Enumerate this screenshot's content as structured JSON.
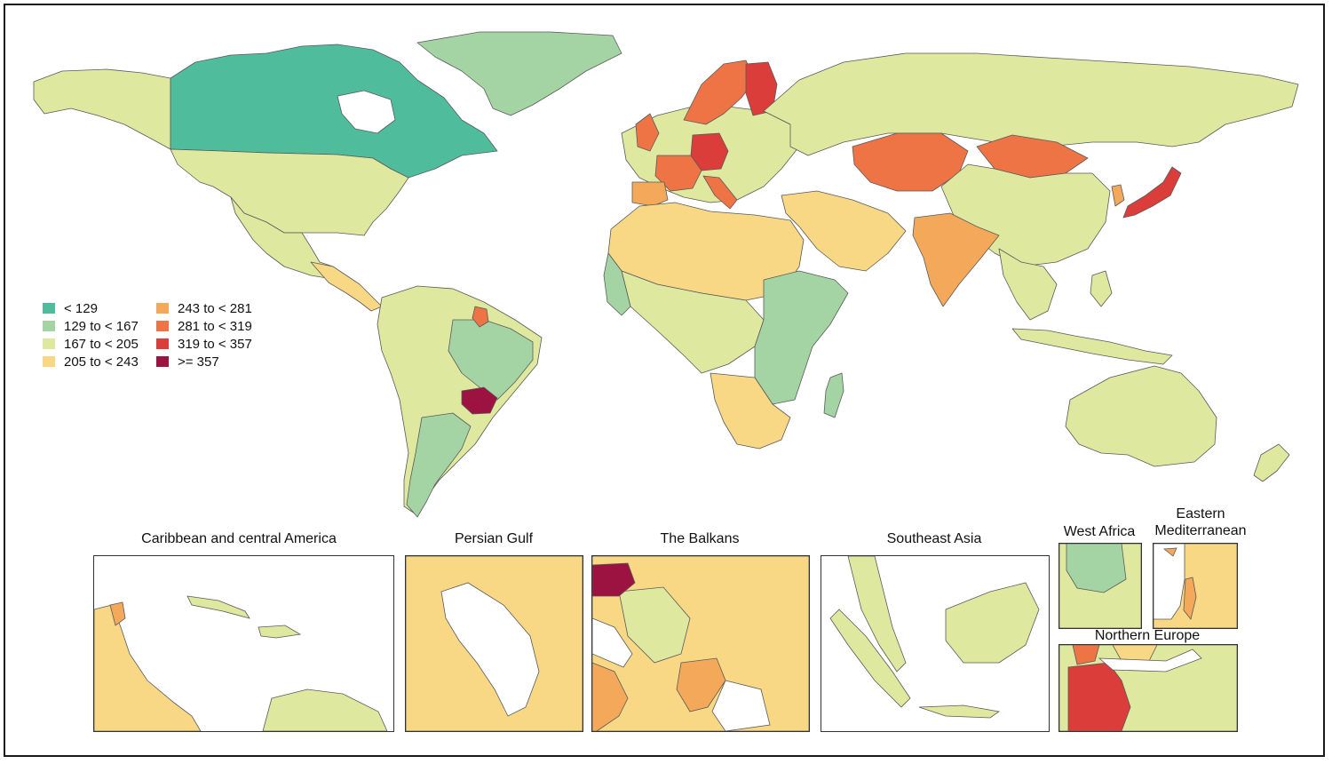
{
  "legend": {
    "items": [
      {
        "label": "< 129",
        "color": "#4fbd9c"
      },
      {
        "label": "129 to < 167",
        "color": "#a5d4a4"
      },
      {
        "label": "167 to < 205",
        "color": "#dfe89f"
      },
      {
        "label": "205 to < 243",
        "color": "#f8d785"
      },
      {
        "label": "243 to < 281",
        "color": "#f4a95a"
      },
      {
        "label": "281 to < 319",
        "color": "#ee7446"
      },
      {
        "label": "319 to < 357",
        "color": "#da3d3a"
      },
      {
        "label": ">= 357",
        "color": "#9c1240"
      }
    ]
  },
  "insets": {
    "caribbean": {
      "title": "Caribbean and central America"
    },
    "persian_gulf": {
      "title": "Persian Gulf"
    },
    "balkans": {
      "title": "The Balkans"
    },
    "southeast_asia": {
      "title": "Southeast Asia"
    },
    "west_africa": {
      "title": "West Africa"
    },
    "eastern_med": {
      "title": "Eastern Mediterranean"
    },
    "northern_europe": {
      "title": "Northern Europe"
    }
  },
  "regions": {
    "canada": "#4fbd9c",
    "alaska": "#dfe89f",
    "greenland": "#a5d4a4",
    "usa": "#dfe89f",
    "mexico": "#dfe89f",
    "central_america": "#f8d785",
    "south_america": "#dfe89f",
    "argentina": "#a5d4a4",
    "brazil_east": "#a5d4a4",
    "brazil_center": "#9c1240",
    "brazil_north": "#ee7446",
    "europe": "#dfe89f",
    "scandinavia": "#ee7446",
    "finland": "#da3d3a",
    "germany": "#da3d3a",
    "france": "#ee7446",
    "spain": "#f4a95a",
    "italy": "#ee7446",
    "russia": "#dfe89f",
    "kazakhstan": "#ee7446",
    "mongolia": "#ee7446",
    "china": "#dfe89f",
    "japan": "#da3d3a",
    "korea": "#f4a95a",
    "india": "#f4a95a",
    "middle_east": "#f8d785",
    "north_africa": "#f8d785",
    "sahel": "#dfe89f",
    "west_africa": "#a5d4a4",
    "east_africa": "#a5d4a4",
    "southern_africa": "#f8d785",
    "madagascar": "#a5d4a4",
    "southeast_asia": "#dfe89f",
    "indonesia": "#dfe89f",
    "australia": "#dfe89f",
    "new_zealand": "#dfe89f"
  }
}
